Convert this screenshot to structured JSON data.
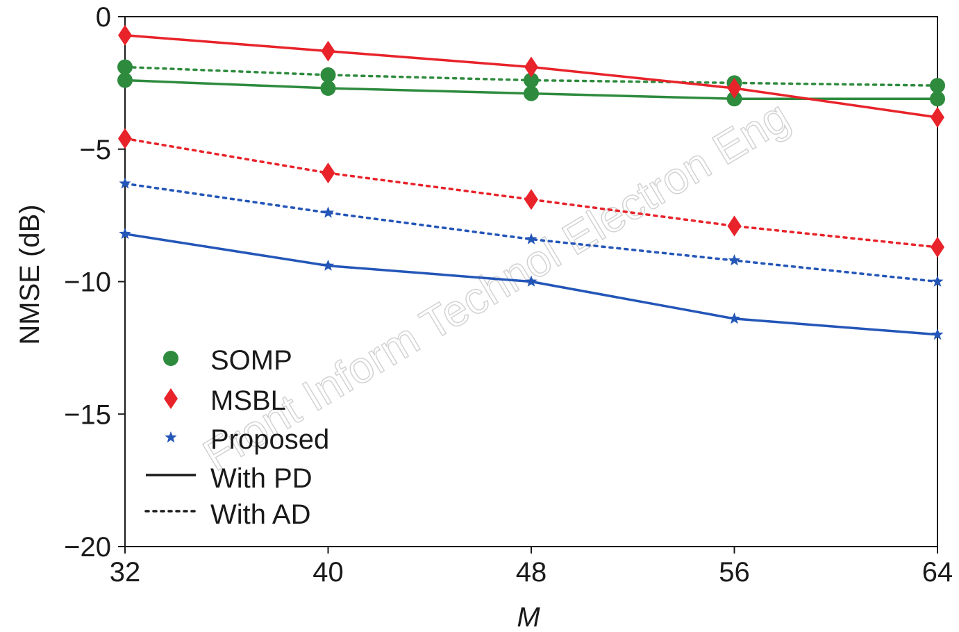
{
  "watermark": "Front Inform Technol Electron Eng",
  "chart_data": {
    "type": "line",
    "xlabel": "M",
    "ylabel": "NMSE (dB)",
    "x": [
      32,
      40,
      48,
      56,
      64
    ],
    "xlim": [
      32,
      64
    ],
    "ylim": [
      -20,
      0
    ],
    "xticks": [
      "32",
      "40",
      "48",
      "56",
      "64"
    ],
    "yticks": [
      "0",
      "−5",
      "−10",
      "−15",
      "−20"
    ],
    "ytick_values": [
      0,
      -5,
      -10,
      -15,
      -20
    ],
    "grid": false,
    "legend_position": "lower-left",
    "series": [
      {
        "name": "SOMP",
        "method": "SOMP",
        "style": "solid",
        "marker": "circle",
        "color": "#2e8b3e",
        "values": [
          -2.4,
          -2.7,
          -2.9,
          -3.1,
          -3.1
        ]
      },
      {
        "name": "SOMP",
        "method": "SOMP",
        "style": "dotted",
        "marker": "circle",
        "color": "#2e8b3e",
        "values": [
          -1.9,
          -2.2,
          -2.4,
          -2.5,
          -2.6
        ]
      },
      {
        "name": "MSBL",
        "method": "MSBL",
        "style": "solid",
        "marker": "diamond",
        "color": "#e8232a",
        "values": [
          -0.7,
          -1.3,
          -1.9,
          -2.7,
          -3.8
        ]
      },
      {
        "name": "MSBL",
        "method": "MSBL",
        "style": "dotted",
        "marker": "diamond",
        "color": "#e8232a",
        "values": [
          -4.6,
          -5.9,
          -6.9,
          -7.9,
          -8.7
        ]
      },
      {
        "name": "Proposed",
        "method": "Proposed",
        "style": "solid",
        "marker": "star",
        "color": "#2456b8",
        "values": [
          -8.2,
          -9.4,
          -10.0,
          -11.4,
          -12.0
        ]
      },
      {
        "name": "Proposed",
        "method": "Proposed",
        "style": "dotted",
        "marker": "star",
        "color": "#2456b8",
        "values": [
          -6.3,
          -7.4,
          -8.4,
          -9.2,
          -10.0
        ]
      }
    ],
    "legend": [
      {
        "label": "SOMP",
        "kind": "marker",
        "marker": "circle",
        "color": "#2e8b3e"
      },
      {
        "label": "MSBL",
        "kind": "marker",
        "marker": "diamond",
        "color": "#e8232a"
      },
      {
        "label": "Proposed",
        "kind": "marker",
        "marker": "star",
        "color": "#2456b8"
      },
      {
        "label": "With PD",
        "kind": "line",
        "style": "solid",
        "color": "#1a1a1a"
      },
      {
        "label": "With AD",
        "kind": "line",
        "style": "dotted",
        "color": "#1a1a1a"
      }
    ]
  }
}
